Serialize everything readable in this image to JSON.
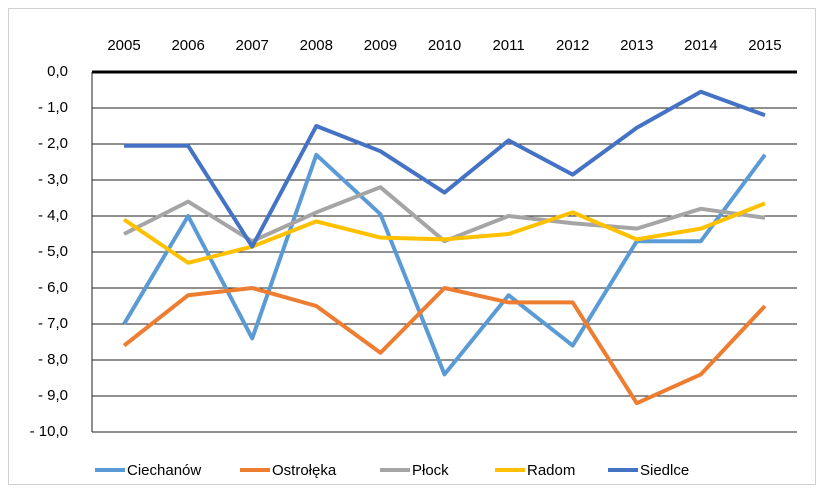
{
  "chart_data": {
    "type": "line",
    "categories": [
      "2005",
      "2006",
      "2007",
      "2008",
      "2009",
      "2010",
      "2011",
      "2012",
      "2013",
      "2014",
      "2015"
    ],
    "ylim": [
      -10,
      0
    ],
    "yticks": [
      {
        "value": 0,
        "label": "0,0"
      },
      {
        "value": -1,
        "label": "- 1,0"
      },
      {
        "value": -2,
        "label": "- 2,0"
      },
      {
        "value": -3,
        "label": "- 3,0"
      },
      {
        "value": -4,
        "label": "- 4,0"
      },
      {
        "value": -5,
        "label": "- 5,0"
      },
      {
        "value": -6,
        "label": "- 6,0"
      },
      {
        "value": -7,
        "label": "- 7,0"
      },
      {
        "value": -8,
        "label": "- 8,0"
      },
      {
        "value": -9,
        "label": "- 9,0"
      },
      {
        "value": -10,
        "label": "- 10,0"
      }
    ],
    "grid": true,
    "legend": "bottom",
    "series": [
      {
        "name": "Ciechanów",
        "color": "#5b9bd5",
        "values": [
          -7.0,
          -4.0,
          -7.4,
          -2.3,
          -3.95,
          -8.4,
          -6.2,
          -7.6,
          -4.7,
          -4.7,
          -2.3
        ]
      },
      {
        "name": "Ostrołęka",
        "color": "#ed7d31",
        "values": [
          -7.6,
          -6.2,
          -6.0,
          -6.5,
          -7.8,
          -6.0,
          -6.4,
          -6.4,
          -9.2,
          -8.4,
          -6.5
        ]
      },
      {
        "name": "Płock",
        "color": "#a5a5a5",
        "values": [
          -4.5,
          -3.6,
          -4.7,
          -3.9,
          -3.2,
          -4.7,
          -4.0,
          -4.2,
          -4.35,
          -3.8,
          -4.05
        ]
      },
      {
        "name": "Radom",
        "color": "#ffc000",
        "values": [
          -4.1,
          -5.3,
          -4.85,
          -4.15,
          -4.6,
          -4.65,
          -4.5,
          -3.9,
          -4.65,
          -4.35,
          -3.65
        ]
      },
      {
        "name": "Siedlce",
        "color": "#4472c4",
        "values": [
          -2.05,
          -2.05,
          -4.85,
          -1.5,
          -2.2,
          -3.35,
          -1.9,
          -2.85,
          -1.55,
          -0.55,
          -1.2
        ]
      }
    ]
  }
}
